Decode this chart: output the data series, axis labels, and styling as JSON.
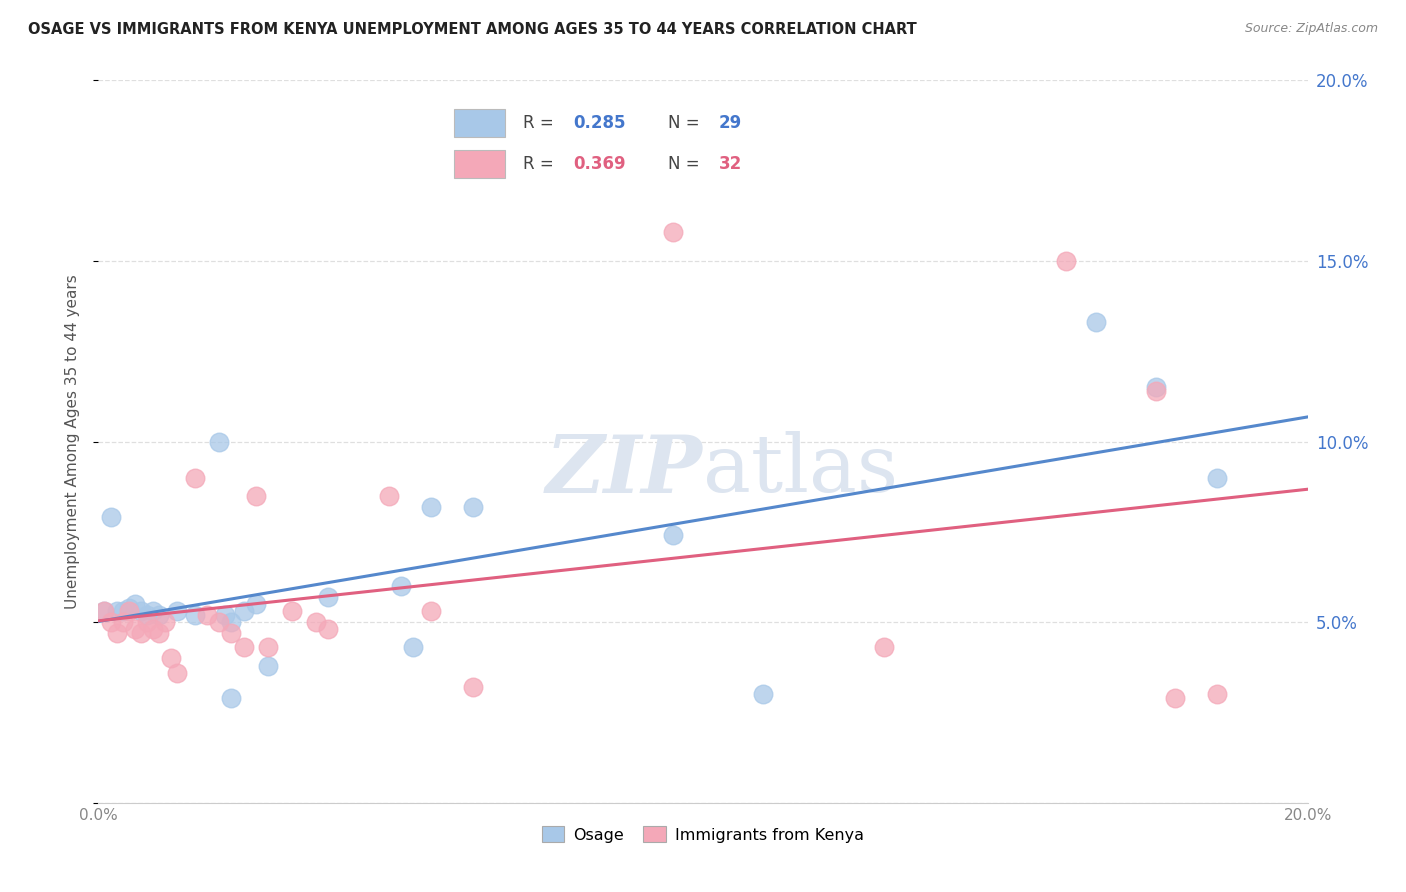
{
  "title": "OSAGE VS IMMIGRANTS FROM KENYA UNEMPLOYMENT AMONG AGES 35 TO 44 YEARS CORRELATION CHART",
  "source": "Source: ZipAtlas.com",
  "ylabel": "Unemployment Among Ages 35 to 44 years",
  "xlim": [
    0.0,
    0.2
  ],
  "ylim": [
    0.0,
    0.2
  ],
  "background_color": "#ffffff",
  "grid_color": "#d8d8d8",
  "osage_R": 0.285,
  "osage_N": 29,
  "kenya_R": 0.369,
  "kenya_N": 32,
  "osage_color": "#a8c8e8",
  "kenya_color": "#f4a8b8",
  "osage_line_color": "#5588cc",
  "kenya_line_color": "#e06080",
  "dashed_line_color": "#e0b0c0",
  "label_color_blue": "#4477cc",
  "label_color_pink": "#e06080",
  "tick_label_color": "#4477cc",
  "title_color": "#222222",
  "source_color": "#888888",
  "ylabel_color": "#555555",
  "watermark_color": "#dde5f0",
  "osage_x": [
    0.001,
    0.002,
    0.003,
    0.004,
    0.005,
    0.006,
    0.007,
    0.008,
    0.009,
    0.01,
    0.013,
    0.016,
    0.02,
    0.021,
    0.022,
    0.024,
    0.026,
    0.028,
    0.038,
    0.05,
    0.055,
    0.095,
    0.11,
    0.165,
    0.175,
    0.185,
    0.022,
    0.052,
    0.062
  ],
  "osage_y": [
    0.053,
    0.079,
    0.053,
    0.053,
    0.054,
    0.055,
    0.053,
    0.052,
    0.053,
    0.052,
    0.053,
    0.052,
    0.1,
    0.052,
    0.05,
    0.053,
    0.055,
    0.038,
    0.057,
    0.06,
    0.082,
    0.074,
    0.03,
    0.133,
    0.115,
    0.09,
    0.029,
    0.043,
    0.082
  ],
  "kenya_x": [
    0.001,
    0.002,
    0.003,
    0.004,
    0.005,
    0.006,
    0.007,
    0.008,
    0.009,
    0.01,
    0.011,
    0.012,
    0.013,
    0.016,
    0.018,
    0.02,
    0.022,
    0.024,
    0.026,
    0.028,
    0.032,
    0.036,
    0.038,
    0.048,
    0.055,
    0.062,
    0.095,
    0.13,
    0.16,
    0.175,
    0.178,
    0.185
  ],
  "kenya_y": [
    0.053,
    0.05,
    0.047,
    0.05,
    0.053,
    0.048,
    0.047,
    0.05,
    0.048,
    0.047,
    0.05,
    0.04,
    0.036,
    0.09,
    0.052,
    0.05,
    0.047,
    0.043,
    0.085,
    0.043,
    0.053,
    0.05,
    0.048,
    0.085,
    0.053,
    0.032,
    0.158,
    0.043,
    0.15,
    0.114,
    0.029,
    0.03
  ]
}
